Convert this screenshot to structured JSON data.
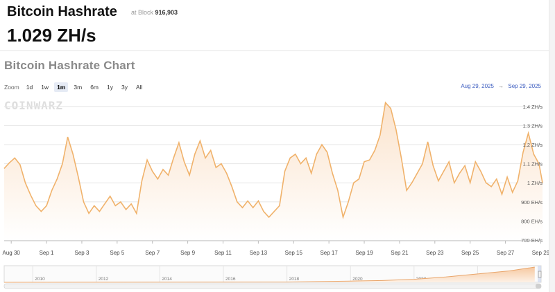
{
  "header": {
    "title": "Bitcoin Hashrate",
    "at_block_label": "at Block",
    "block_number": "916,903",
    "hashrate": "1.029 ZH/s"
  },
  "chart_title": "Bitcoin Hashrate Chart",
  "zoom": {
    "label": "Zoom",
    "buttons": [
      "1d",
      "1w",
      "1m",
      "3m",
      "6m",
      "1y",
      "3y",
      "All"
    ],
    "active": "1m"
  },
  "date_range": {
    "from": "Aug 29, 2025",
    "arrow": "→",
    "to": "Sep 29, 2025"
  },
  "watermark": "COINWARZ",
  "colors": {
    "line": "#f0b26b",
    "fill_top": "#fbe3cc",
    "fill_bottom": "#ffffff",
    "grid": "#e6e6e6",
    "range_link": "#3a5bbf"
  },
  "chart_data": {
    "type": "area",
    "ylabel_ticks": [
      "700 EH/s",
      "800 EH/s",
      "900 EH/s",
      "1 ZH/s",
      "1.1 ZH/s",
      "1.2 ZH/s",
      "1.3 ZH/s",
      "1.4 ZH/s"
    ],
    "y_tick_values": [
      700,
      800,
      900,
      1000,
      1100,
      1200,
      1300,
      1400
    ],
    "ylim": [
      700,
      1450
    ],
    "x_ticks": [
      "Aug 30",
      "Sep 1",
      "Sep 3",
      "Sep 5",
      "Sep 7",
      "Sep 9",
      "Sep 11",
      "Sep 13",
      "Sep 15",
      "Sep 17",
      "Sep 19",
      "Sep 21",
      "Sep 23",
      "Sep 25",
      "Sep 27",
      "Sep 29"
    ],
    "x_tick_days": [
      1,
      3,
      5,
      7,
      9,
      11,
      13,
      15,
      17,
      19,
      21,
      23,
      25,
      27,
      29,
      31
    ],
    "x_range_days": [
      0.6,
      31.1
    ],
    "series": [
      {
        "values": [
          [
            0.6,
            1075
          ],
          [
            0.9,
            1105
          ],
          [
            1.2,
            1130
          ],
          [
            1.5,
            1095
          ],
          [
            1.8,
            1000
          ],
          [
            2.1,
            935
          ],
          [
            2.4,
            880
          ],
          [
            2.7,
            850
          ],
          [
            3.0,
            880
          ],
          [
            3.3,
            960
          ],
          [
            3.6,
            1020
          ],
          [
            3.9,
            1100
          ],
          [
            4.2,
            1240
          ],
          [
            4.5,
            1150
          ],
          [
            4.8,
            1030
          ],
          [
            5.1,
            900
          ],
          [
            5.4,
            840
          ],
          [
            5.7,
            880
          ],
          [
            6.0,
            850
          ],
          [
            6.3,
            890
          ],
          [
            6.6,
            930
          ],
          [
            6.9,
            880
          ],
          [
            7.2,
            900
          ],
          [
            7.5,
            860
          ],
          [
            7.8,
            890
          ],
          [
            8.1,
            840
          ],
          [
            8.4,
            1010
          ],
          [
            8.7,
            1120
          ],
          [
            9.0,
            1060
          ],
          [
            9.3,
            1020
          ],
          [
            9.6,
            1070
          ],
          [
            9.9,
            1040
          ],
          [
            10.2,
            1130
          ],
          [
            10.5,
            1210
          ],
          [
            10.8,
            1110
          ],
          [
            11.1,
            1040
          ],
          [
            11.4,
            1150
          ],
          [
            11.7,
            1220
          ],
          [
            12.0,
            1130
          ],
          [
            12.3,
            1170
          ],
          [
            12.6,
            1080
          ],
          [
            12.9,
            1100
          ],
          [
            13.2,
            1050
          ],
          [
            13.5,
            980
          ],
          [
            13.8,
            900
          ],
          [
            14.1,
            870
          ],
          [
            14.4,
            905
          ],
          [
            14.7,
            870
          ],
          [
            15.0,
            905
          ],
          [
            15.3,
            850
          ],
          [
            15.6,
            820
          ],
          [
            15.9,
            850
          ],
          [
            16.2,
            880
          ],
          [
            16.5,
            1060
          ],
          [
            16.8,
            1130
          ],
          [
            17.1,
            1150
          ],
          [
            17.4,
            1100
          ],
          [
            17.7,
            1130
          ],
          [
            18.0,
            1050
          ],
          [
            18.3,
            1150
          ],
          [
            18.6,
            1200
          ],
          [
            18.9,
            1160
          ],
          [
            19.2,
            1050
          ],
          [
            19.5,
            960
          ],
          [
            19.8,
            820
          ],
          [
            20.1,
            900
          ],
          [
            20.4,
            1000
          ],
          [
            20.7,
            1020
          ],
          [
            21.0,
            1110
          ],
          [
            21.3,
            1120
          ],
          [
            21.6,
            1170
          ],
          [
            21.9,
            1250
          ],
          [
            22.2,
            1420
          ],
          [
            22.5,
            1390
          ],
          [
            22.8,
            1280
          ],
          [
            23.1,
            1130
          ],
          [
            23.4,
            960
          ],
          [
            23.7,
            1000
          ],
          [
            24.0,
            1050
          ],
          [
            24.3,
            1100
          ],
          [
            24.6,
            1215
          ],
          [
            24.9,
            1090
          ],
          [
            25.2,
            1010
          ],
          [
            25.5,
            1060
          ],
          [
            25.8,
            1110
          ],
          [
            26.1,
            1000
          ],
          [
            26.4,
            1050
          ],
          [
            26.7,
            1090
          ],
          [
            27.0,
            1000
          ],
          [
            27.3,
            1110
          ],
          [
            27.6,
            1060
          ],
          [
            27.9,
            1000
          ],
          [
            28.2,
            980
          ],
          [
            28.5,
            1020
          ],
          [
            28.8,
            940
          ],
          [
            29.1,
            1030
          ],
          [
            29.4,
            950
          ],
          [
            29.7,
            1010
          ],
          [
            30.0,
            1160
          ],
          [
            30.3,
            1260
          ],
          [
            30.6,
            1150
          ],
          [
            30.9,
            1100
          ],
          [
            31.1,
            1000
          ]
        ]
      }
    ],
    "navigator": {
      "x_ticks": [
        "2010",
        "2012",
        "2014",
        "2016",
        "2018",
        "2020",
        "2022",
        "2024"
      ],
      "x_tick_years": [
        2010,
        2012,
        2014,
        2016,
        2018,
        2020,
        2022,
        2024
      ],
      "x_range_years": [
        2009.1,
        2026.0
      ],
      "series": [
        [
          2009.1,
          0
        ],
        [
          2018.0,
          0.02
        ],
        [
          2019.0,
          0.05
        ],
        [
          2020.0,
          0.08
        ],
        [
          2021.0,
          0.12
        ],
        [
          2022.0,
          0.2
        ],
        [
          2023.0,
          0.35
        ],
        [
          2024.0,
          0.55
        ],
        [
          2025.0,
          0.75
        ],
        [
          2025.8,
          1.0
        ]
      ]
    }
  }
}
